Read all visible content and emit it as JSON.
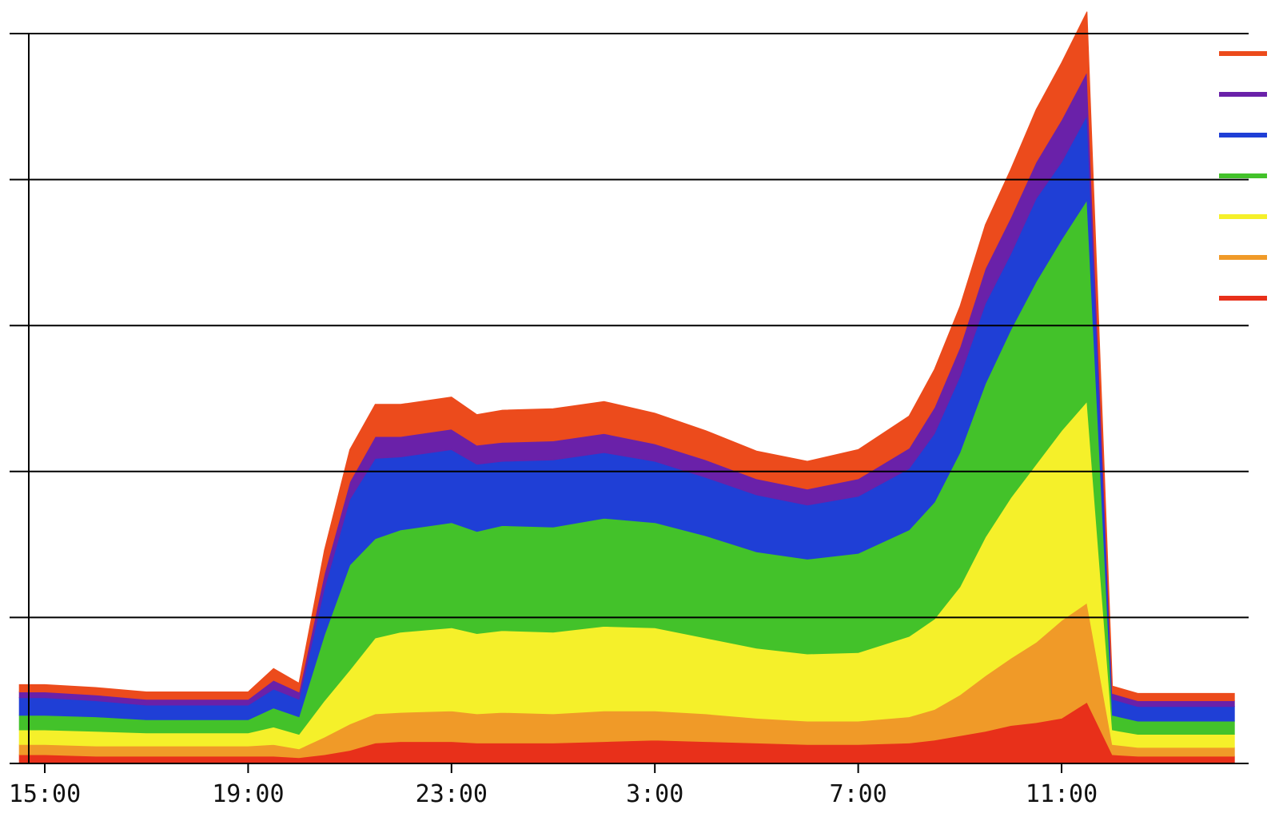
{
  "chart_data": {
    "type": "area",
    "stacked": true,
    "title": "",
    "xlabel": "",
    "ylabel": "",
    "xlim": [
      14.5,
      38.5
    ],
    "ylim": [
      0,
      5
    ],
    "grid": true,
    "legend": "top-right",
    "x_ticks": [
      {
        "x": 15,
        "label": "15:00"
      },
      {
        "x": 19,
        "label": "19:00"
      },
      {
        "x": 23,
        "label": "23:00"
      },
      {
        "x": 27,
        "label": "3:00"
      },
      {
        "x": 31,
        "label": "7:00"
      },
      {
        "x": 35,
        "label": "11:00"
      }
    ],
    "x": [
      14.5,
      15,
      16,
      17,
      18,
      19,
      19.5,
      20,
      20.5,
      21,
      21.5,
      22,
      23,
      23.5,
      24,
      25,
      26,
      27,
      28,
      29,
      30,
      31,
      32,
      32.5,
      33,
      33.5,
      34,
      34.5,
      35,
      35.5,
      36,
      36.5,
      37,
      38,
      38.4
    ],
    "series": [
      {
        "color": "#e8301a",
        "values": [
          0.06,
          0.06,
          0.05,
          0.05,
          0.05,
          0.05,
          0.05,
          0.04,
          0.06,
          0.09,
          0.14,
          0.15,
          0.15,
          0.14,
          0.14,
          0.14,
          0.15,
          0.16,
          0.15,
          0.14,
          0.13,
          0.13,
          0.14,
          0.16,
          0.19,
          0.22,
          0.26,
          0.28,
          0.31,
          0.42,
          0.06,
          0.05,
          0.05,
          0.05,
          0.05
        ]
      },
      {
        "color": "#f09a28",
        "values": [
          0.07,
          0.07,
          0.07,
          0.07,
          0.07,
          0.07,
          0.08,
          0.06,
          0.12,
          0.18,
          0.2,
          0.2,
          0.21,
          0.2,
          0.21,
          0.2,
          0.21,
          0.2,
          0.19,
          0.17,
          0.16,
          0.16,
          0.18,
          0.21,
          0.28,
          0.38,
          0.46,
          0.55,
          0.67,
          0.68,
          0.07,
          0.06,
          0.06,
          0.06,
          0.06
        ]
      },
      {
        "color": "#f5f02a",
        "values": [
          0.1,
          0.1,
          0.1,
          0.09,
          0.09,
          0.09,
          0.12,
          0.1,
          0.25,
          0.37,
          0.52,
          0.55,
          0.57,
          0.55,
          0.56,
          0.56,
          0.58,
          0.57,
          0.52,
          0.48,
          0.46,
          0.47,
          0.55,
          0.62,
          0.74,
          0.95,
          1.1,
          1.22,
          1.3,
          1.38,
          0.1,
          0.09,
          0.09,
          0.09,
          0.09
        ]
      },
      {
        "color": "#43c22a",
        "values": [
          0.1,
          0.1,
          0.1,
          0.09,
          0.09,
          0.09,
          0.13,
          0.12,
          0.45,
          0.72,
          0.68,
          0.7,
          0.72,
          0.7,
          0.72,
          0.72,
          0.74,
          0.72,
          0.7,
          0.66,
          0.65,
          0.68,
          0.73,
          0.8,
          0.92,
          1.05,
          1.15,
          1.25,
          1.31,
          1.38,
          0.1,
          0.09,
          0.09,
          0.09,
          0.09
        ]
      },
      {
        "color": "#1f3fd6",
        "values": [
          0.12,
          0.12,
          0.11,
          0.1,
          0.1,
          0.1,
          0.13,
          0.12,
          0.32,
          0.45,
          0.55,
          0.5,
          0.5,
          0.46,
          0.44,
          0.46,
          0.45,
          0.42,
          0.4,
          0.39,
          0.37,
          0.39,
          0.42,
          0.47,
          0.52,
          0.55,
          0.52,
          0.57,
          0.53,
          0.58,
          0.11,
          0.1,
          0.1,
          0.1,
          0.1
        ]
      },
      {
        "color": "#6a21a9",
        "values": [
          0.04,
          0.04,
          0.04,
          0.04,
          0.04,
          0.04,
          0.06,
          0.05,
          0.1,
          0.12,
          0.15,
          0.14,
          0.14,
          0.13,
          0.13,
          0.13,
          0.13,
          0.12,
          0.12,
          0.11,
          0.11,
          0.12,
          0.14,
          0.18,
          0.2,
          0.24,
          0.25,
          0.25,
          0.29,
          0.3,
          0.04,
          0.04,
          0.04,
          0.04,
          0.04
        ]
      },
      {
        "color": "#ec4b1c",
        "values": [
          0.05,
          0.05,
          0.05,
          0.05,
          0.05,
          0.05,
          0.08,
          0.06,
          0.16,
          0.22,
          0.22,
          0.22,
          0.22,
          0.21,
          0.22,
          0.22,
          0.22,
          0.21,
          0.2,
          0.19,
          0.19,
          0.2,
          0.22,
          0.26,
          0.28,
          0.3,
          0.33,
          0.36,
          0.39,
          0.41,
          0.05,
          0.05,
          0.05,
          0.05,
          0.05
        ]
      }
    ]
  }
}
